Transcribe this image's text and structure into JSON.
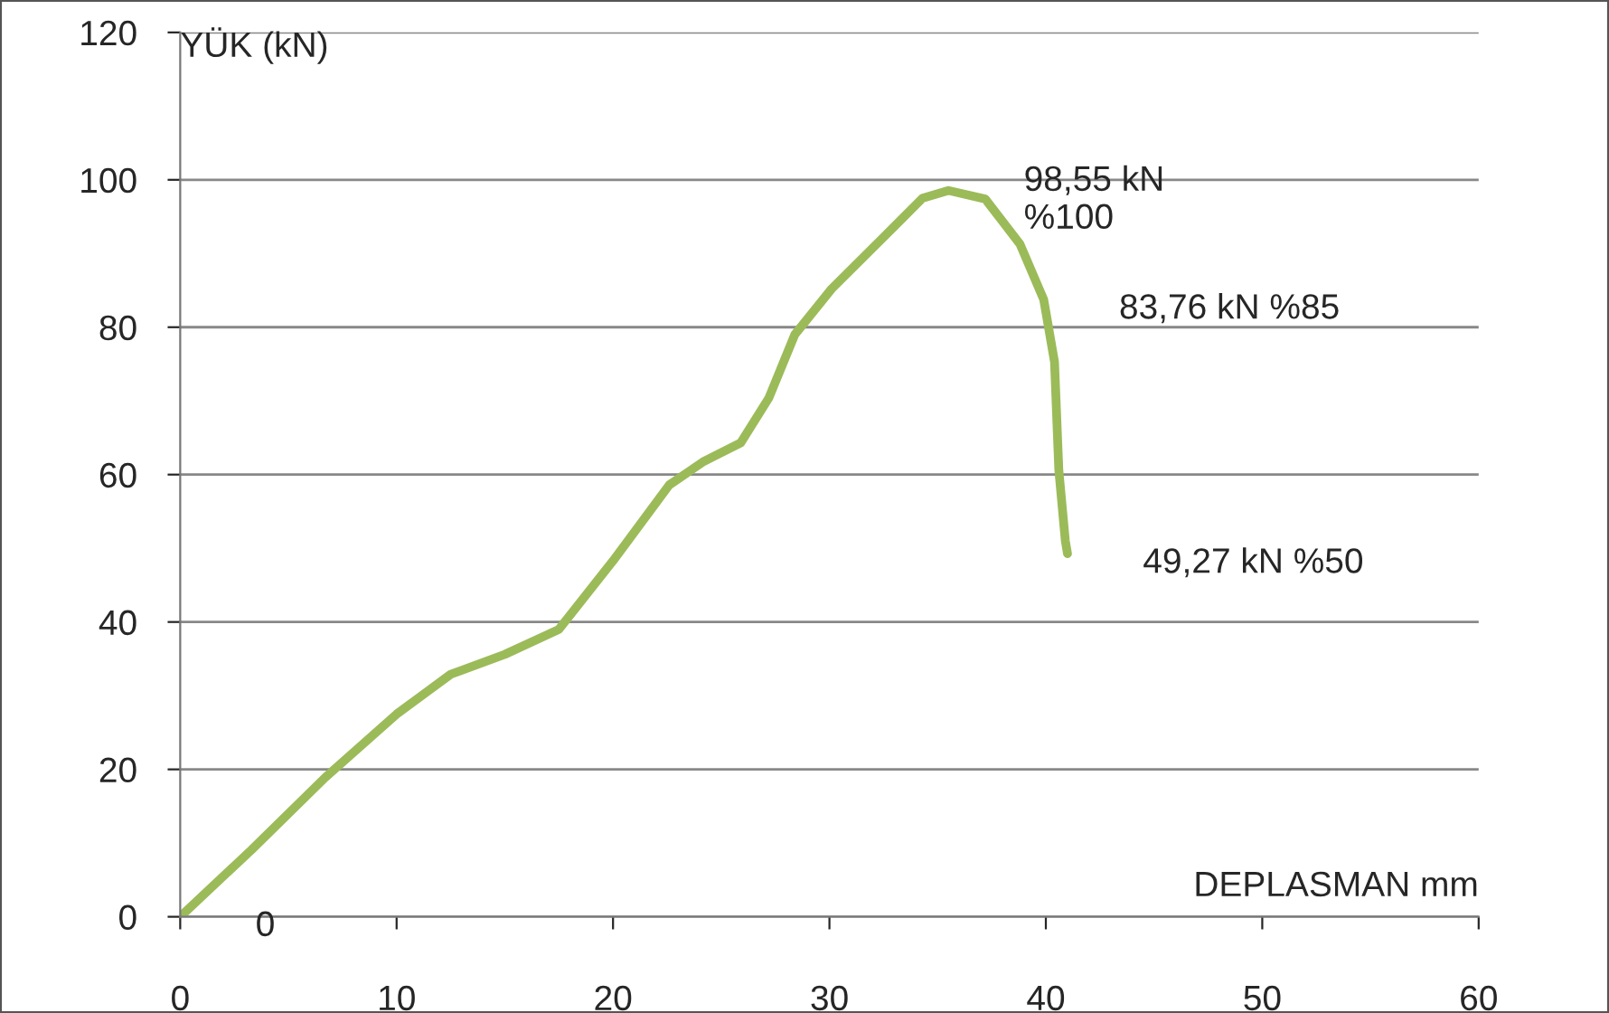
{
  "chart_data": {
    "type": "line",
    "xlabel": "DEPLASMAN mm",
    "ylabel": "YÜK (kN)",
    "series": [
      {
        "color": "#9bbb59",
        "x": [
          0,
          3.3,
          6.7,
          10,
          12.5,
          15,
          17.5,
          20,
          22.6,
          24.2,
          25.9,
          27.2,
          28.4,
          30.1,
          32.6,
          34.3,
          35.5,
          37.2,
          38.8,
          39.9,
          40.4,
          40.6,
          40.9,
          41
        ],
        "values": [
          0,
          9.1,
          18.9,
          27.5,
          32.9,
          35.6,
          39,
          48.3,
          58.6,
          61.8,
          64.3,
          70.4,
          79,
          85.2,
          92.5,
          97.5,
          98.55,
          97.4,
          91.3,
          83.76,
          75.3,
          60.6,
          51,
          49.27
        ]
      }
    ],
    "annotations": [
      {
        "text": "98,55 kN\n%100",
        "x": 35.5,
        "y": 98.55
      },
      {
        "text": "83,76 kN %85",
        "x": 39.9,
        "y": 83.76
      },
      {
        "text": "49,27 kN %50",
        "x": 41,
        "y": 49.27
      },
      {
        "text": "0",
        "x": 0,
        "y": 0
      }
    ],
    "xlim": [
      0,
      60
    ],
    "xticks": [
      0,
      10,
      20,
      30,
      40,
      50,
      60
    ],
    "ylim": [
      0,
      120
    ],
    "yticks": [
      0,
      20,
      40,
      60,
      80,
      100,
      120
    ],
    "grid": "y",
    "marker": "none",
    "line_style": "solid",
    "legend": false
  }
}
